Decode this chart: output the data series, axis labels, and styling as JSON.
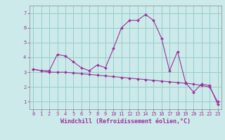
{
  "xlabel": "Windchill (Refroidissement éolien,°C)",
  "x_values": [
    0,
    1,
    2,
    3,
    4,
    5,
    6,
    7,
    8,
    9,
    10,
    11,
    12,
    13,
    14,
    15,
    16,
    17,
    18,
    19,
    20,
    21,
    22,
    23
  ],
  "line1_y": [
    3.2,
    3.1,
    3.1,
    4.2,
    4.1,
    3.7,
    3.3,
    3.1,
    3.5,
    3.3,
    4.6,
    6.0,
    6.5,
    6.5,
    6.9,
    6.5,
    5.3,
    3.1,
    4.4,
    2.3,
    1.65,
    2.2,
    2.1,
    0.85
  ],
  "line2_y": [
    3.2,
    3.1,
    3.0,
    3.0,
    3.0,
    2.95,
    2.9,
    2.85,
    2.8,
    2.75,
    2.7,
    2.65,
    2.6,
    2.55,
    2.5,
    2.45,
    2.4,
    2.35,
    2.3,
    2.25,
    2.2,
    2.1,
    2.0,
    1.0
  ],
  "line_color": "#993399",
  "bg_color": "#cceaea",
  "grid_color": "#99cccc",
  "ylim": [
    0.5,
    7.5
  ],
  "xlim": [
    -0.5,
    23.5
  ],
  "yticks": [
    1,
    2,
    3,
    4,
    5,
    6,
    7
  ],
  "xticks": [
    0,
    1,
    2,
    3,
    4,
    5,
    6,
    7,
    8,
    9,
    10,
    11,
    12,
    13,
    14,
    15,
    16,
    17,
    18,
    19,
    20,
    21,
    22,
    23
  ],
  "tick_color": "#993399",
  "label_color": "#993399",
  "tick_fontsize": 5.0,
  "xlabel_fontsize": 6.0
}
